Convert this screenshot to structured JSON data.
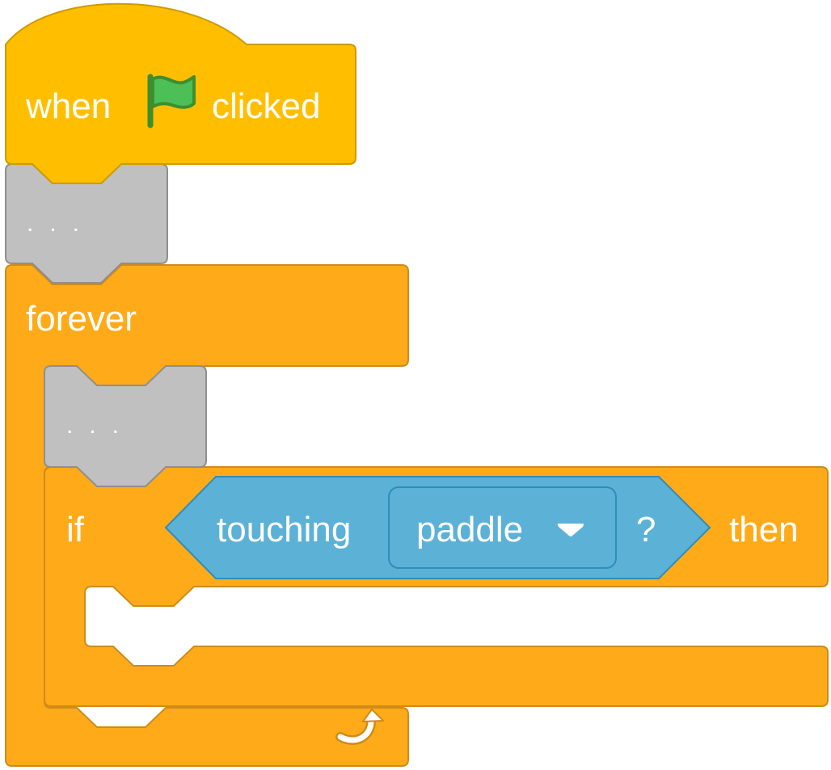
{
  "hat_block": {
    "label_before": "when",
    "label_after": "clicked",
    "icon": "green-flag-icon",
    "color": "#FFBF00"
  },
  "placeholder_block_1": {
    "label": "...",
    "color": "#C0C0C0"
  },
  "forever_block": {
    "label": "forever",
    "icon": "loop-arrow-icon",
    "color": "#FFAB19"
  },
  "placeholder_block_2": {
    "label": "...",
    "color": "#C0C0C0"
  },
  "if_block": {
    "label_if": "if",
    "label_then": "then",
    "color": "#FFAB19",
    "condition": {
      "label": "touching",
      "dropdown_value": "paddle",
      "suffix": "?",
      "color": "#5CB1D6"
    }
  }
}
